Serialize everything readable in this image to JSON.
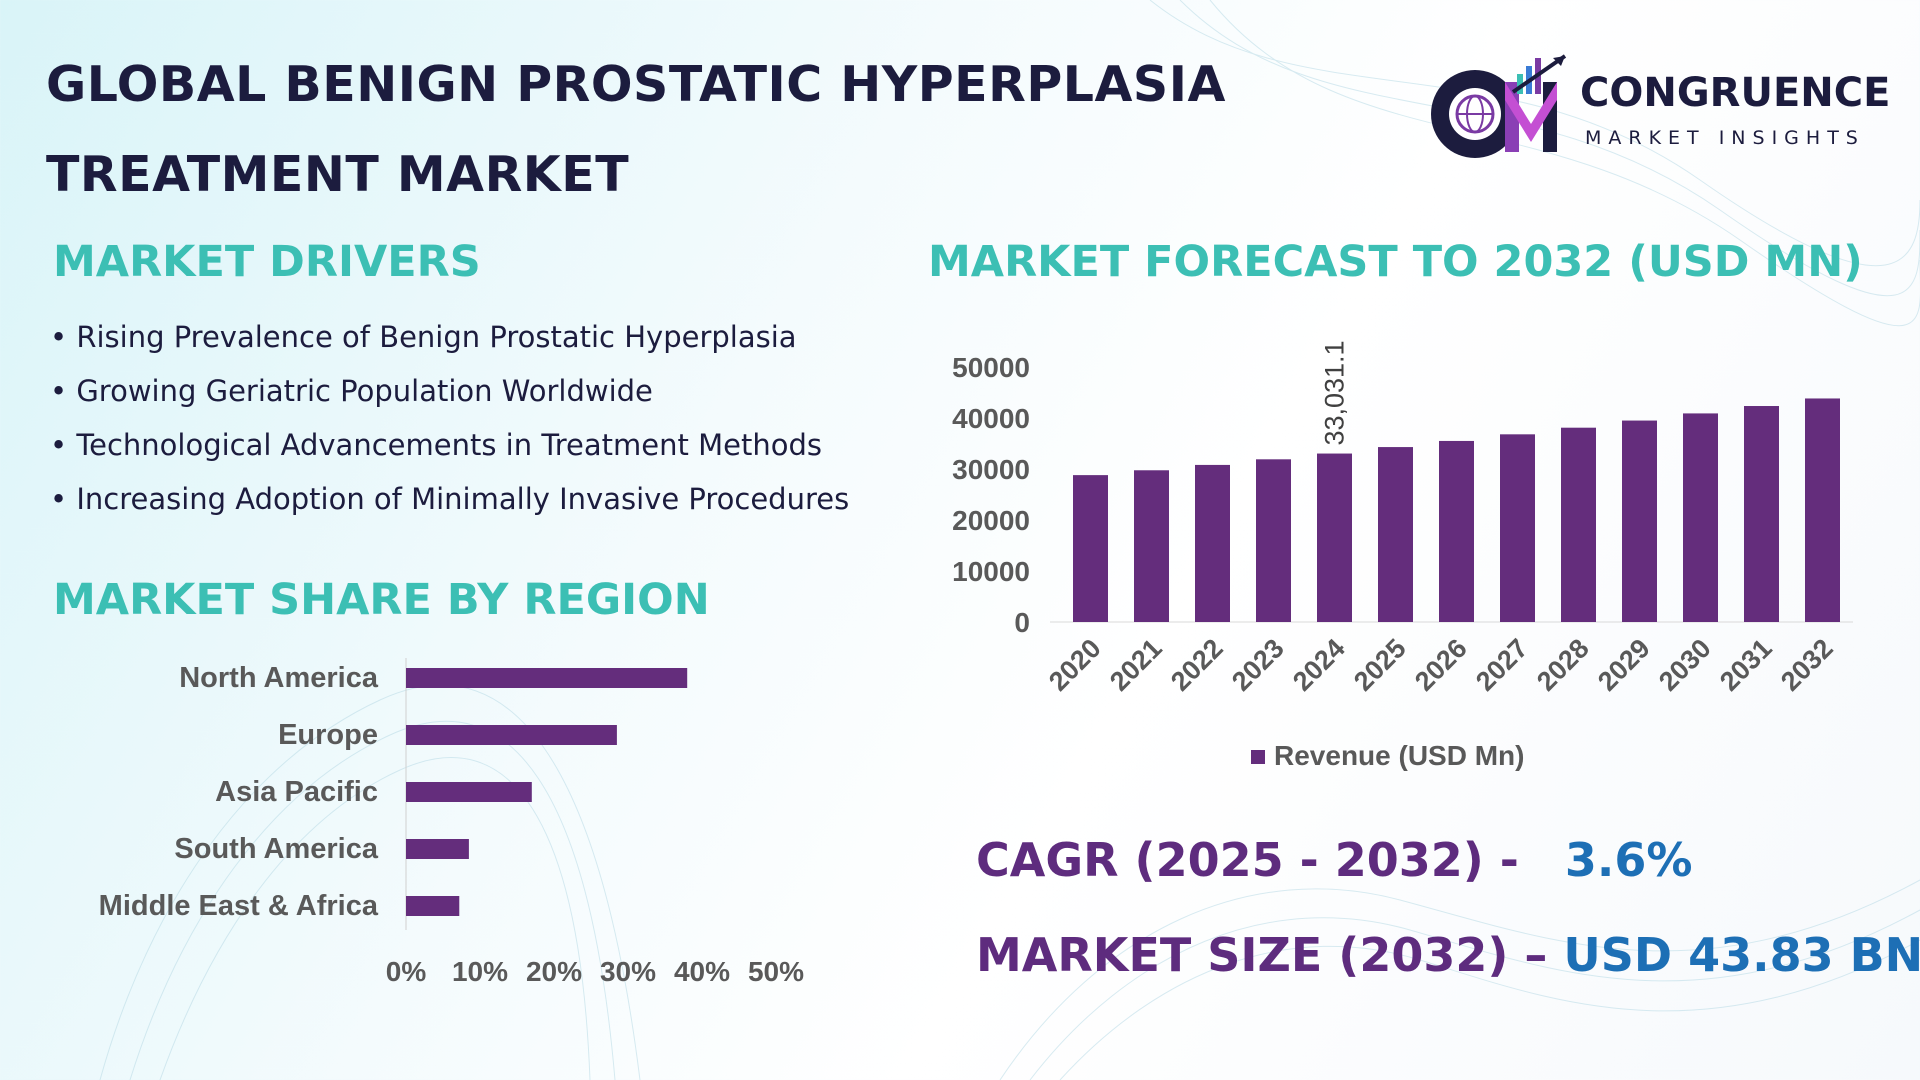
{
  "header": {
    "title_line1": "GLOBAL BENIGN PROSTATIC HYPERPLASIA",
    "title_line2": "TREATMENT MARKET"
  },
  "logo": {
    "name": "CONGRUENCE",
    "tagline": "MARKET INSIGHTS",
    "monogram": "CM"
  },
  "drivers": {
    "heading": "MARKET DRIVERS",
    "items": [
      "• Rising Prevalence of Benign Prostatic Hyperplasia",
      "• Growing Geriatric Population Worldwide",
      "• Technological Advancements in Treatment Methods",
      "• Increasing Adoption of Minimally Invasive Procedures"
    ]
  },
  "region": {
    "heading": "MARKET SHARE BY REGION"
  },
  "forecast": {
    "heading": "MARKET FORECAST TO 2032 (USD MN)"
  },
  "stats": {
    "cagr_label": "CAGR (2025 - 2032) -",
    "cagr_value": "3.6%",
    "size_label": "MARKET SIZE (2032) –",
    "size_value": "USD 43.83 BN"
  },
  "colors": {
    "bar": "#642d7c",
    "heading": "#3cbfb4",
    "title": "#1c1c3e",
    "stat_label": "#5e2c7e",
    "stat_value": "#1d6fb5"
  },
  "chart_data": [
    {
      "type": "bar",
      "orientation": "horizontal",
      "title": "MARKET SHARE BY REGION",
      "categories": [
        "North America",
        "Europe",
        "Asia Pacific",
        "South America",
        "Middle East & Africa"
      ],
      "values": [
        38,
        28.5,
        17,
        8.5,
        7.2
      ],
      "unit": "%",
      "xlim": [
        0,
        50
      ],
      "xticks": [
        "0%",
        "10%",
        "20%",
        "30%",
        "40%",
        "50%"
      ],
      "grid": false
    },
    {
      "type": "bar",
      "title": "MARKET FORECAST TO 2032 (USD MN)",
      "categories": [
        "2020",
        "2021",
        "2022",
        "2023",
        "2024",
        "2025",
        "2026",
        "2027",
        "2028",
        "2029",
        "2030",
        "2031",
        "2032"
      ],
      "series": [
        {
          "name": "Revenue (USD Mn)",
          "values": [
            28800,
            29750,
            30800,
            31900,
            33031.1,
            34300,
            35500,
            36800,
            38100,
            39500,
            40900,
            42350,
            43830
          ]
        }
      ],
      "data_labels": [
        {
          "category": "2024",
          "label": "33,031.1"
        }
      ],
      "ylim": [
        0,
        50000
      ],
      "yticks": [
        "0",
        "10000",
        "20000",
        "30000",
        "40000",
        "50000"
      ],
      "legend": "bottom",
      "grid": false
    }
  ]
}
